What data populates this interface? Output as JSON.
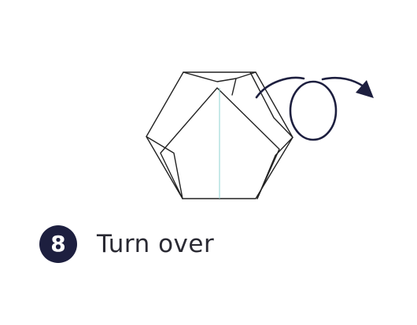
{
  "step": {
    "number": "8",
    "instruction": "Turn over"
  },
  "colors": {
    "badge": "#1d1f3f",
    "arrow": "#1d1f3f",
    "fold_line": "#222222",
    "crease": "#8fd3d0"
  },
  "icons": {
    "turn_over": "turn-over-arrow-icon"
  }
}
